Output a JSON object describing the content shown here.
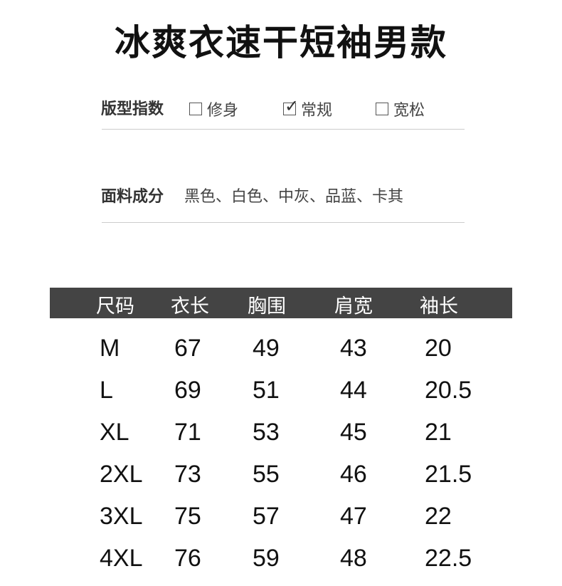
{
  "title": "冰爽衣速干短袖男款",
  "fit": {
    "label": "版型指数",
    "options": [
      {
        "label": "修身",
        "checked": false
      },
      {
        "label": "常规",
        "checked": true
      },
      {
        "label": "宽松",
        "checked": false
      }
    ]
  },
  "fabric": {
    "label": "面料成分",
    "value": "黑色、白色、中灰、品蓝、卡其"
  },
  "table": {
    "headers": [
      "尺码",
      "衣长",
      "胸围",
      "肩宽",
      "袖长"
    ],
    "rows": [
      [
        "M",
        "67",
        "49",
        "43",
        "20"
      ],
      [
        "L",
        "69",
        "51",
        "44",
        "20.5"
      ],
      [
        "XL",
        "71",
        "53",
        "45",
        "21"
      ],
      [
        "2XL",
        "73",
        "55",
        "46",
        "21.5"
      ],
      [
        "3XL",
        "75",
        "57",
        "47",
        "22"
      ],
      [
        "4XL",
        "76",
        "59",
        "48",
        "22.5"
      ]
    ],
    "header_bg": "#444444"
  }
}
